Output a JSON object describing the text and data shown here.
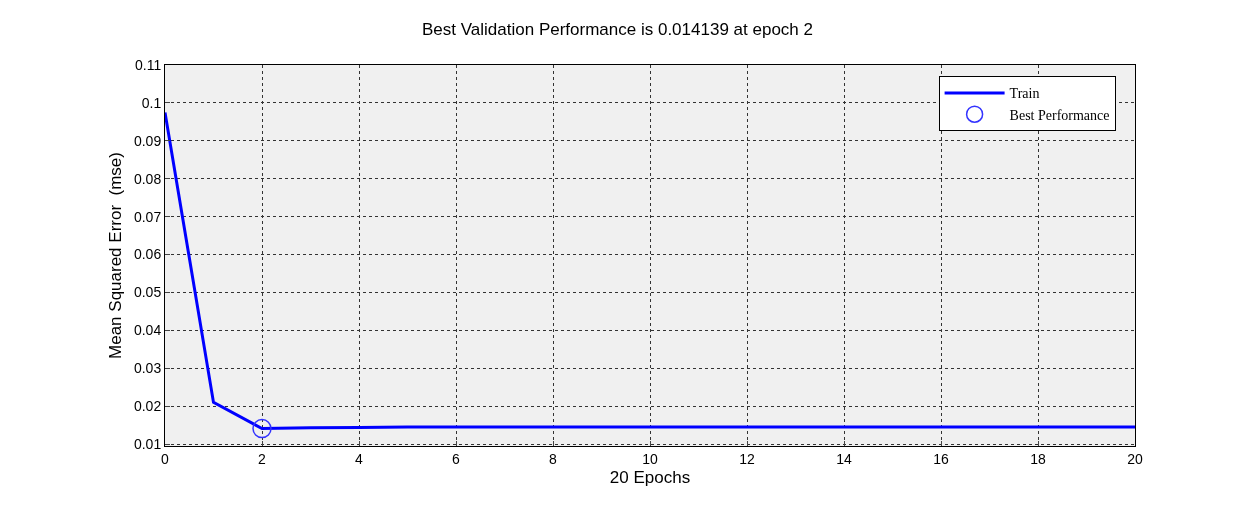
{
  "chart_data": {
    "type": "line",
    "title": "Best Validation Performance is 0.014139 at epoch 2",
    "xlabel": "20 Epochs",
    "ylabel": "Mean Squared Error  (mse)",
    "series": [
      {
        "name": "Train",
        "color": "#0000ff",
        "marker": "none",
        "x": [
          0,
          1,
          2,
          3,
          4,
          5,
          6,
          7,
          8,
          9,
          10,
          11,
          12,
          13,
          14,
          15,
          16,
          17,
          18,
          19,
          20
        ],
        "values": [
          0.0975,
          0.021,
          0.0141,
          0.0143,
          0.0144,
          0.0145,
          0.0145,
          0.0145,
          0.0145,
          0.0145,
          0.0145,
          0.0145,
          0.0145,
          0.0145,
          0.0145,
          0.0145,
          0.0145,
          0.0145,
          0.0145,
          0.0145,
          0.0145
        ]
      },
      {
        "name": "Best Performance",
        "type": "scatter",
        "color": "#3333ff",
        "marker": "circle",
        "x": [
          2
        ],
        "values": [
          0.0141
        ]
      }
    ],
    "xlim": [
      0,
      20
    ],
    "xticks": [
      0,
      2,
      4,
      6,
      8,
      10,
      12,
      14,
      16,
      18,
      20
    ],
    "ylim": [
      0.0095,
      0.11
    ],
    "yticks": [
      0.01,
      0.02,
      0.03,
      0.04,
      0.05,
      0.06,
      0.07,
      0.08,
      0.09,
      0.1,
      0.11
    ],
    "grid": true,
    "legend": "top right",
    "line_style": "solid"
  }
}
